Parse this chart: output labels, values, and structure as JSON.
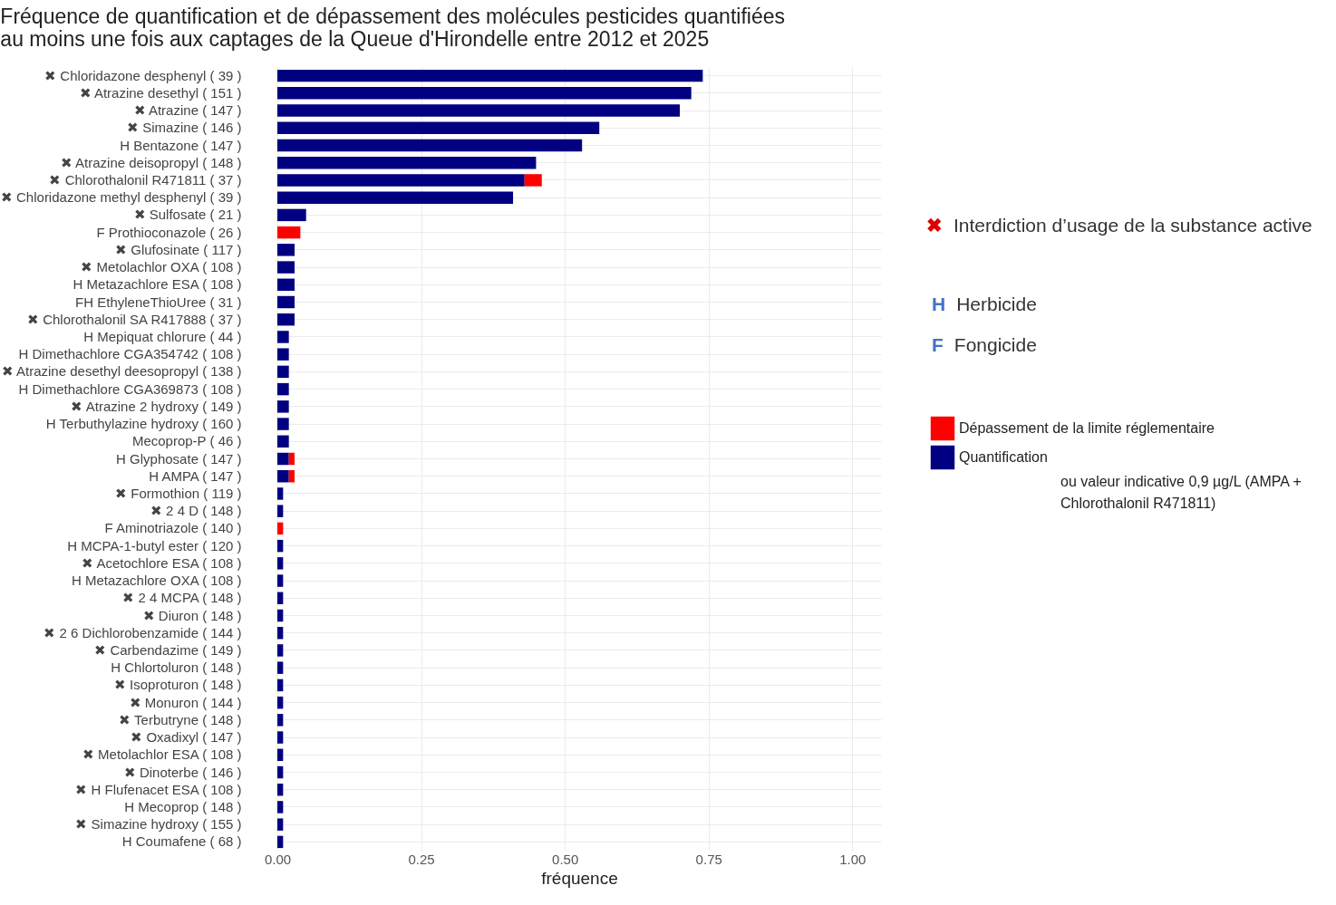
{
  "chart_data": {
    "type": "bar",
    "orientation": "horizontal",
    "stacked": true,
    "title": "Fréquence de quantification et de dépassement des molécules pesticides quantifiées\nau moins une fois aux captages de la Queue d'Hirondelle entre 2012 et 2025",
    "xlabel": "fréquence",
    "categories": [
      "✖ Chloridazone desphenyl ( 39 )",
      "✖ Atrazine desethyl ( 151 )",
      "✖ Atrazine ( 147 )",
      "✖ Simazine ( 146 )",
      "H Bentazone ( 147 )",
      "✖ Atrazine deisopropyl ( 148 )",
      "✖ Chlorothalonil R471811 ( 37 )",
      "✖ Chloridazone methyl desphenyl ( 39 )",
      "✖ Sulfosate ( 21 )",
      "F Prothioconazole ( 26 )",
      "✖ Glufosinate ( 117 )",
      "✖ Metolachlor OXA ( 108 )",
      "H Metazachlore ESA ( 108 )",
      "FH EthyleneThioUree ( 31 )",
      "✖ Chlorothalonil SA R417888 ( 37 )",
      "H Mepiquat chlorure ( 44 )",
      "H Dimethachlore CGA354742 ( 108 )",
      "✖ Atrazine desethyl deesopropyl ( 138 )",
      "H Dimethachlore CGA369873 ( 108 )",
      "✖ Atrazine 2 hydroxy ( 149 )",
      "H Terbuthylazine hydroxy ( 160 )",
      "Mecoprop-P ( 46 )",
      "H Glyphosate ( 147 )",
      "H AMPA ( 147 )",
      "✖ Formothion ( 119 )",
      "✖ 2 4 D ( 148 )",
      "F Aminotriazole ( 140 )",
      "H MCPA-1-butyl ester ( 120 )",
      "✖ Acetochlore ESA ( 108 )",
      "H Metazachlore OXA ( 108 )",
      "✖ 2 4 MCPA ( 148 )",
      "✖ Diuron ( 148 )",
      "✖ 2 6 Dichlorobenzamide ( 144 )",
      "✖ Carbendazime ( 149 )",
      "H Chlortoluron ( 148 )",
      "✖ Isoproturon ( 148 )",
      "✖ Monuron ( 144 )",
      "✖ Terbutryne ( 148 )",
      "✖ Oxadixyl ( 147 )",
      "✖ Metolachlor ESA ( 108 )",
      "✖ Dinoterbe ( 146 )",
      "✖ H Flufenacet ESA ( 108 )",
      "H Mecoprop ( 148 )",
      "✖ Simazine hydroxy ( 155 )",
      "H Coumafene ( 68 )"
    ],
    "series": [
      {
        "name": "Quantification",
        "color": "#000080",
        "values": [
          0.74,
          0.72,
          0.7,
          0.56,
          0.53,
          0.45,
          0.43,
          0.41,
          0.05,
          0,
          0.03,
          0.03,
          0.03,
          0.03,
          0.03,
          0.02,
          0.02,
          0.02,
          0.02,
          0.02,
          0.02,
          0.02,
          0.02,
          0.02,
          0.01,
          0.01,
          0,
          0.01,
          0.01,
          0.01,
          0.01,
          0.01,
          0.01,
          0.01,
          0.01,
          0.01,
          0.01,
          0.01,
          0.01,
          0.01,
          0.01,
          0.01,
          0.01,
          0.01,
          0.01
        ]
      },
      {
        "name": "Dépassement de la limite réglementaire",
        "color": "#ff0000",
        "values": [
          0,
          0,
          0,
          0,
          0,
          0,
          0.03,
          0,
          0,
          0.04,
          0,
          0,
          0,
          0,
          0,
          0,
          0,
          0,
          0,
          0,
          0,
          0,
          0.01,
          0.01,
          0,
          0,
          0.01,
          0,
          0,
          0,
          0,
          0,
          0,
          0,
          0,
          0,
          0,
          0,
          0,
          0,
          0,
          0,
          0,
          0,
          0
        ]
      }
    ],
    "xlim": [
      0,
      1.05
    ],
    "xticks": [
      {
        "value": 0,
        "label": "0.00"
      },
      {
        "value": 0.25,
        "label": "0.25"
      },
      {
        "value": 0.5,
        "label": "0.50"
      },
      {
        "value": 0.75,
        "label": "0.75"
      },
      {
        "value": 1,
        "label": "1.00"
      }
    ],
    "grid": true,
    "legend": "right",
    "annotations": [
      "✖ Interdiction d’usage de la substance active",
      "H Herbicide",
      "F Fongicide",
      "ou valeur indicative 0,9 µg/L (AMPA + Chlorothalonil R471811)"
    ]
  }
}
